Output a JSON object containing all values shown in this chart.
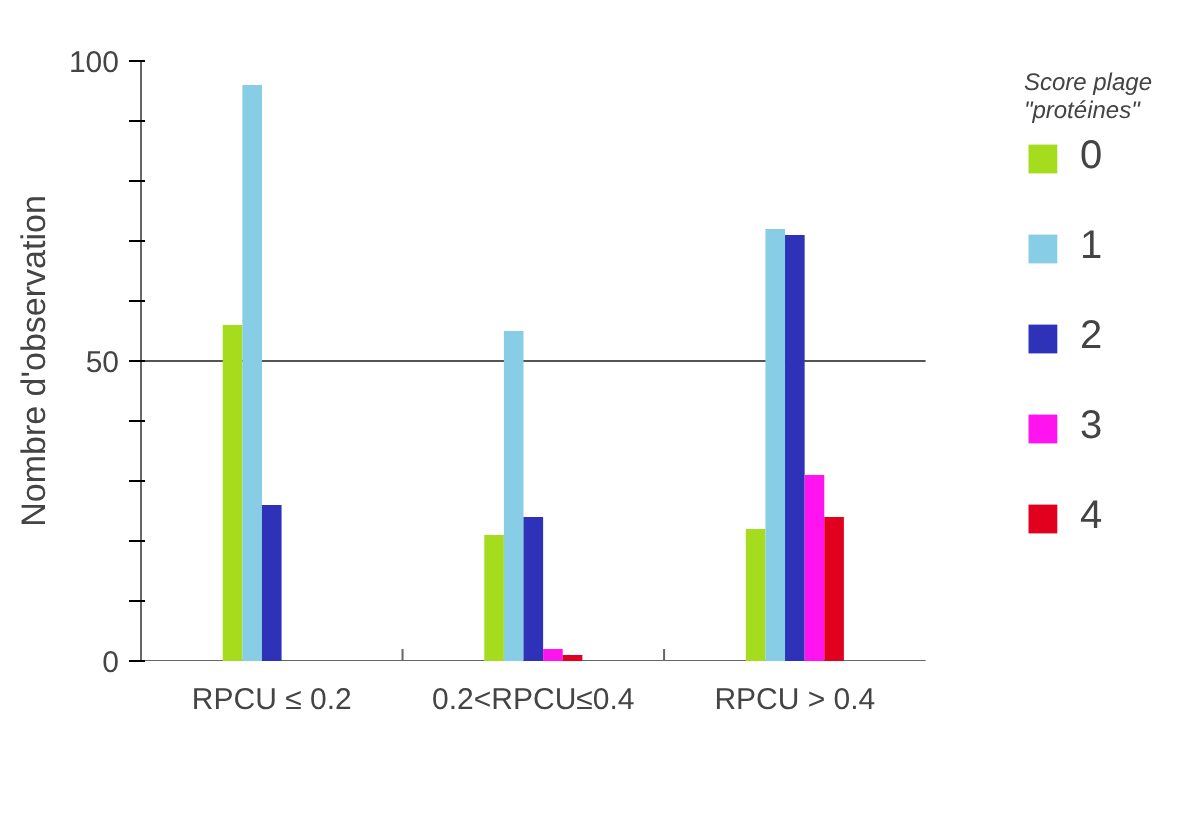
{
  "chart_data": {
    "type": "bar",
    "ylabel": "Nombre d'observation",
    "legend_title": "Score plage\n\"protéines\"",
    "categories": [
      "RPCU ≤ 0.2",
      "0.2<RPCU≤0.4",
      "RPCU > 0.4"
    ],
    "series": [
      {
        "name": "0",
        "color": "#a6dc1e",
        "values": [
          56,
          21,
          22
        ]
      },
      {
        "name": "1",
        "color": "#87cde6",
        "values": [
          96,
          55,
          72
        ]
      },
      {
        "name": "2",
        "color": "#2d32b9",
        "values": [
          26,
          24,
          71
        ]
      },
      {
        "name": "3",
        "color": "#ff14f0",
        "values": [
          null,
          2,
          31
        ]
      },
      {
        "name": "4",
        "color": "#e1001e",
        "values": [
          null,
          1,
          24
        ]
      }
    ],
    "ylim": [
      0,
      100
    ],
    "yticks": [
      0,
      {
        "value": 10,
        "label": null
      },
      {
        "value": 20,
        "label": null
      },
      {
        "value": 30,
        "label": null
      },
      {
        "value": 40,
        "label": null
      },
      50,
      {
        "value": 60,
        "label": null
      },
      {
        "value": 70,
        "label": null
      },
      {
        "value": 80,
        "label": null
      },
      {
        "value": 90,
        "label": null
      },
      100
    ],
    "ref_lines": [
      {
        "axis": "y",
        "value": 50,
        "label": null,
        "color": "#555555"
      }
    ],
    "grid": false,
    "legend": "right"
  }
}
